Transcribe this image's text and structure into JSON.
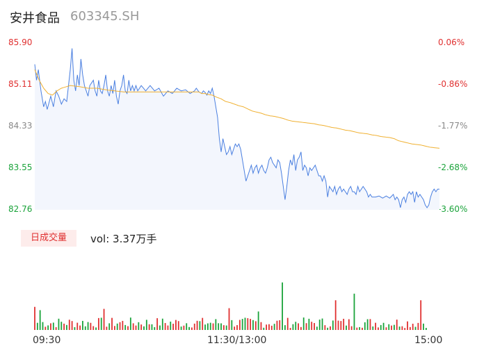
{
  "header": {
    "name": "安井食品",
    "code": "603345.SH"
  },
  "chart_data": {
    "type": "line",
    "y_ticks": [
      "85.90",
      "85.11",
      "84.33",
      "83.55",
      "82.76"
    ],
    "pct_ticks": [
      "0.06%",
      "-0.86%",
      "-1.77%",
      "-2.68%",
      "-3.60%"
    ],
    "ylim": [
      82.76,
      85.9
    ],
    "x_ticks": [
      "09:30",
      "11:30/13:00",
      "15:00"
    ],
    "price_anchors": [
      [
        0,
        85.5
      ],
      [
        2,
        85.2
      ],
      [
        4,
        85.4
      ],
      [
        7,
        85.0
      ],
      [
        10,
        84.7
      ],
      [
        12,
        84.8
      ],
      [
        14,
        84.65
      ],
      [
        18,
        84.9
      ],
      [
        21,
        84.7
      ],
      [
        24,
        85.0
      ],
      [
        27,
        84.9
      ],
      [
        30,
        84.75
      ],
      [
        33,
        84.85
      ],
      [
        36,
        84.8
      ],
      [
        38,
        85.1
      ],
      [
        40,
        85.4
      ],
      [
        42,
        85.8
      ],
      [
        44,
        85.2
      ],
      [
        46,
        85.0
      ],
      [
        48,
        85.3
      ],
      [
        50,
        85.1
      ],
      [
        52,
        85.6
      ],
      [
        54,
        85.3
      ],
      [
        56,
        85.1
      ],
      [
        58,
        85.0
      ],
      [
        60,
        84.9
      ],
      [
        62,
        85.1
      ],
      [
        66,
        85.2
      ],
      [
        68,
        85.0
      ],
      [
        70,
        84.9
      ],
      [
        72,
        85.2
      ],
      [
        74,
        85.0
      ],
      [
        76,
        84.95
      ],
      [
        78,
        85.1
      ],
      [
        80,
        85.3
      ],
      [
        82,
        85.0
      ],
      [
        84,
        84.9
      ],
      [
        86,
        85.1
      ],
      [
        88,
        84.95
      ],
      [
        90,
        85.2
      ],
      [
        92,
        84.9
      ],
      [
        94,
        84.75
      ],
      [
        96,
        85.0
      ],
      [
        98,
        85.1
      ],
      [
        100,
        85.3
      ],
      [
        102,
        85.0
      ],
      [
        104,
        84.95
      ],
      [
        106,
        85.2
      ],
      [
        108,
        85.0
      ],
      [
        110,
        85.1
      ],
      [
        112,
        85.0
      ],
      [
        114,
        85.1
      ],
      [
        116,
        85.0
      ],
      [
        120,
        85.1
      ],
      [
        125,
        85.0
      ],
      [
        130,
        85.1
      ],
      [
        135,
        85.0
      ],
      [
        140,
        85.05
      ],
      [
        145,
        84.9
      ],
      [
        150,
        85.0
      ],
      [
        155,
        84.95
      ],
      [
        160,
        85.05
      ],
      [
        165,
        85.0
      ],
      [
        170,
        85.02
      ],
      [
        175,
        84.95
      ],
      [
        180,
        85.0
      ],
      [
        182,
        85.05
      ],
      [
        185,
        84.98
      ],
      [
        188,
        84.95
      ],
      [
        190,
        85.0
      ],
      [
        192,
        84.97
      ],
      [
        194,
        84.92
      ],
      [
        196,
        85.0
      ],
      [
        198,
        84.95
      ],
      [
        200,
        85.05
      ],
      [
        202,
        84.9
      ],
      [
        204,
        84.7
      ],
      [
        206,
        84.5
      ],
      [
        208,
        84.1
      ],
      [
        210,
        83.85
      ],
      [
        212,
        84.1
      ],
      [
        214,
        83.95
      ],
      [
        216,
        83.8
      ],
      [
        218,
        83.85
      ],
      [
        220,
        83.95
      ],
      [
        222,
        83.8
      ],
      [
        224,
        83.9
      ],
      [
        226,
        84.0
      ],
      [
        228,
        83.95
      ],
      [
        230,
        84.0
      ],
      [
        232,
        83.9
      ],
      [
        234,
        83.7
      ],
      [
        236,
        83.5
      ],
      [
        238,
        83.3
      ],
      [
        240,
        83.4
      ],
      [
        242,
        83.5
      ],
      [
        244,
        83.6
      ],
      [
        246,
        83.45
      ],
      [
        248,
        83.55
      ],
      [
        250,
        83.6
      ],
      [
        252,
        83.45
      ],
      [
        254,
        83.55
      ],
      [
        256,
        83.6
      ],
      [
        258,
        83.5
      ],
      [
        260,
        83.45
      ],
      [
        262,
        83.55
      ],
      [
        264,
        83.7
      ],
      [
        266,
        83.75
      ],
      [
        268,
        83.65
      ],
      [
        270,
        83.6
      ],
      [
        272,
        83.55
      ],
      [
        274,
        83.7
      ],
      [
        276,
        83.65
      ],
      [
        278,
        83.45
      ],
      [
        280,
        83.2
      ],
      [
        282,
        82.95
      ],
      [
        284,
        83.2
      ],
      [
        286,
        83.5
      ],
      [
        288,
        83.7
      ],
      [
        290,
        83.6
      ],
      [
        292,
        83.8
      ],
      [
        294,
        83.5
      ],
      [
        296,
        83.7
      ],
      [
        298,
        83.75
      ],
      [
        300,
        83.85
      ],
      [
        302,
        83.5
      ],
      [
        304,
        83.6
      ],
      [
        306,
        83.55
      ],
      [
        308,
        83.4
      ],
      [
        310,
        83.55
      ],
      [
        312,
        83.5
      ],
      [
        314,
        83.55
      ],
      [
        316,
        83.6
      ],
      [
        318,
        83.5
      ],
      [
        320,
        83.4
      ],
      [
        322,
        83.4
      ],
      [
        324,
        83.3
      ],
      [
        326,
        83.4
      ],
      [
        328,
        83.3
      ],
      [
        330,
        83.0
      ],
      [
        332,
        83.2
      ],
      [
        334,
        83.15
      ],
      [
        336,
        83.1
      ],
      [
        338,
        83.2
      ],
      [
        340,
        83.05
      ],
      [
        342,
        83.15
      ],
      [
        344,
        83.2
      ],
      [
        346,
        83.1
      ],
      [
        348,
        83.15
      ],
      [
        350,
        83.1
      ],
      [
        352,
        83.05
      ],
      [
        354,
        83.15
      ],
      [
        356,
        83.2
      ],
      [
        358,
        83.1
      ],
      [
        360,
        83.1
      ],
      [
        362,
        83.05
      ],
      [
        364,
        83.2
      ],
      [
        366,
        83.1
      ],
      [
        368,
        83.15
      ],
      [
        370,
        83.2
      ],
      [
        372,
        83.15
      ],
      [
        374,
        83.1
      ],
      [
        376,
        83.0
      ],
      [
        378,
        83.05
      ],
      [
        380,
        83.0
      ],
      [
        384,
        83.0
      ],
      [
        388,
        83.02
      ],
      [
        392,
        82.98
      ],
      [
        396,
        83.02
      ],
      [
        400,
        82.98
      ],
      [
        404,
        83.05
      ],
      [
        406,
        82.95
      ],
      [
        408,
        83.0
      ],
      [
        410,
        82.95
      ],
      [
        412,
        82.8
      ],
      [
        414,
        82.95
      ],
      [
        416,
        83.0
      ],
      [
        418,
        82.9
      ],
      [
        420,
        83.05
      ],
      [
        422,
        83.1
      ],
      [
        424,
        83.05
      ],
      [
        426,
        83.1
      ],
      [
        428,
        82.9
      ],
      [
        430,
        83.1
      ],
      [
        432,
        83.0
      ],
      [
        434,
        83.05
      ],
      [
        436,
        83.0
      ],
      [
        438,
        82.95
      ],
      [
        440,
        82.85
      ],
      [
        442,
        82.8
      ],
      [
        444,
        82.85
      ],
      [
        446,
        83.0
      ],
      [
        448,
        83.1
      ],
      [
        450,
        83.15
      ],
      [
        452,
        83.1
      ],
      [
        454,
        83.15
      ],
      [
        456,
        83.15
      ]
    ],
    "avg_anchors": [
      [
        0,
        85.4
      ],
      [
        5,
        85.2
      ],
      [
        10,
        85.05
      ],
      [
        15,
        84.95
      ],
      [
        20,
        84.92
      ],
      [
        25,
        85.0
      ],
      [
        30,
        85.05
      ],
      [
        40,
        85.1
      ],
      [
        50,
        85.08
      ],
      [
        60,
        85.05
      ],
      [
        70,
        85.05
      ],
      [
        80,
        85.02
      ],
      [
        90,
        85.0
      ],
      [
        100,
        84.98
      ],
      [
        110,
        84.98
      ],
      [
        120,
        84.98
      ],
      [
        130,
        84.98
      ],
      [
        140,
        84.98
      ],
      [
        150,
        84.98
      ],
      [
        160,
        84.98
      ],
      [
        170,
        84.98
      ],
      [
        180,
        84.98
      ],
      [
        185,
        84.98
      ],
      [
        188,
        84.95
      ],
      [
        192,
        84.95
      ],
      [
        196,
        84.93
      ],
      [
        200,
        84.92
      ],
      [
        205,
        84.88
      ],
      [
        210,
        84.85
      ],
      [
        215,
        84.8
      ],
      [
        220,
        84.78
      ],
      [
        225,
        84.75
      ],
      [
        230,
        84.72
      ],
      [
        235,
        84.7
      ],
      [
        240,
        84.66
      ],
      [
        245,
        84.62
      ],
      [
        250,
        84.6
      ],
      [
        255,
        84.58
      ],
      [
        260,
        84.55
      ],
      [
        265,
        84.53
      ],
      [
        270,
        84.52
      ],
      [
        275,
        84.5
      ],
      [
        280,
        84.48
      ],
      [
        285,
        84.45
      ],
      [
        290,
        84.43
      ],
      [
        295,
        84.42
      ],
      [
        300,
        84.41
      ],
      [
        305,
        84.4
      ],
      [
        310,
        84.39
      ],
      [
        315,
        84.38
      ],
      [
        320,
        84.36
      ],
      [
        325,
        84.35
      ],
      [
        330,
        84.33
      ],
      [
        335,
        84.31
      ],
      [
        340,
        84.3
      ],
      [
        345,
        84.28
      ],
      [
        350,
        84.26
      ],
      [
        355,
        84.25
      ],
      [
        360,
        84.23
      ],
      [
        365,
        84.21
      ],
      [
        370,
        84.2
      ],
      [
        375,
        84.19
      ],
      [
        380,
        84.17
      ],
      [
        385,
        84.16
      ],
      [
        390,
        84.14
      ],
      [
        395,
        84.13
      ],
      [
        400,
        84.12
      ],
      [
        405,
        84.1
      ],
      [
        410,
        84.06
      ],
      [
        415,
        84.04
      ],
      [
        420,
        84.02
      ],
      [
        425,
        84.0
      ],
      [
        430,
        83.99
      ],
      [
        435,
        83.98
      ],
      [
        440,
        83.96
      ],
      [
        445,
        83.94
      ],
      [
        450,
        83.93
      ],
      [
        456,
        83.92
      ]
    ],
    "volume": {
      "label": "日成交量",
      "text": "vol: 3.37万手"
    }
  }
}
